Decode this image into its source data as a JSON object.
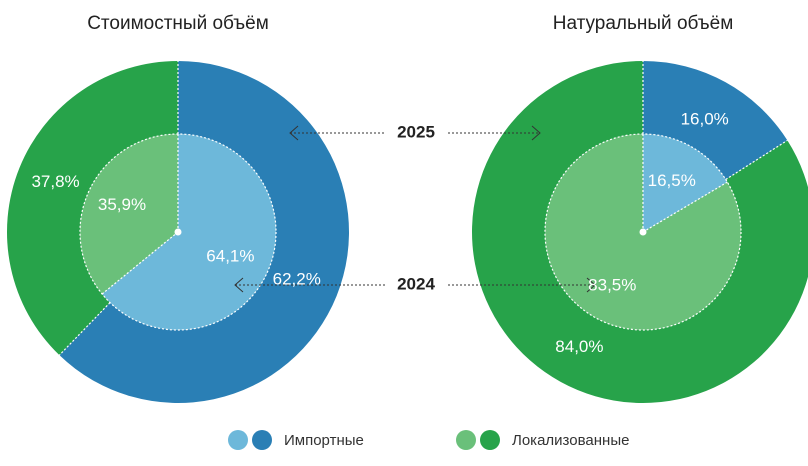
{
  "chart_data": [
    {
      "type": "donut",
      "title": "Стоимостный объём",
      "series": [
        {
          "values": [
            62.2,
            37.8
          ],
          "value_labels": [
            "62,2%",
            "37,8%"
          ],
          "colors": [
            "#2a7fb5",
            "#27a34a"
          ]
        },
        {
          "values": [
            64.1,
            35.9
          ],
          "value_labels": [
            "64,1%",
            "35,9%"
          ],
          "colors": [
            "#6db8da",
            "#6ac07a"
          ]
        }
      ]
    },
    {
      "type": "donut",
      "title": "Натуральный объём",
      "series": [
        {
          "values": [
            16.0,
            84.0
          ],
          "value_labels": [
            "16,0%",
            "84,0%"
          ],
          "colors": [
            "#2a7fb5",
            "#27a34a"
          ]
        },
        {
          "values": [
            16.5,
            83.5
          ],
          "value_labels": [
            "16,5%",
            "83,5%"
          ],
          "colors": [
            "#6db8da",
            "#6ac07a"
          ]
        }
      ]
    }
  ],
  "rings": [
    "2025",
    "2024"
  ],
  "legend": {
    "labels": [
      "Импортные",
      "Локализованные"
    ],
    "colors": [
      [
        "#6db8da",
        "#2a7fb5"
      ],
      [
        "#6ac07a",
        "#27a34a"
      ]
    ]
  }
}
